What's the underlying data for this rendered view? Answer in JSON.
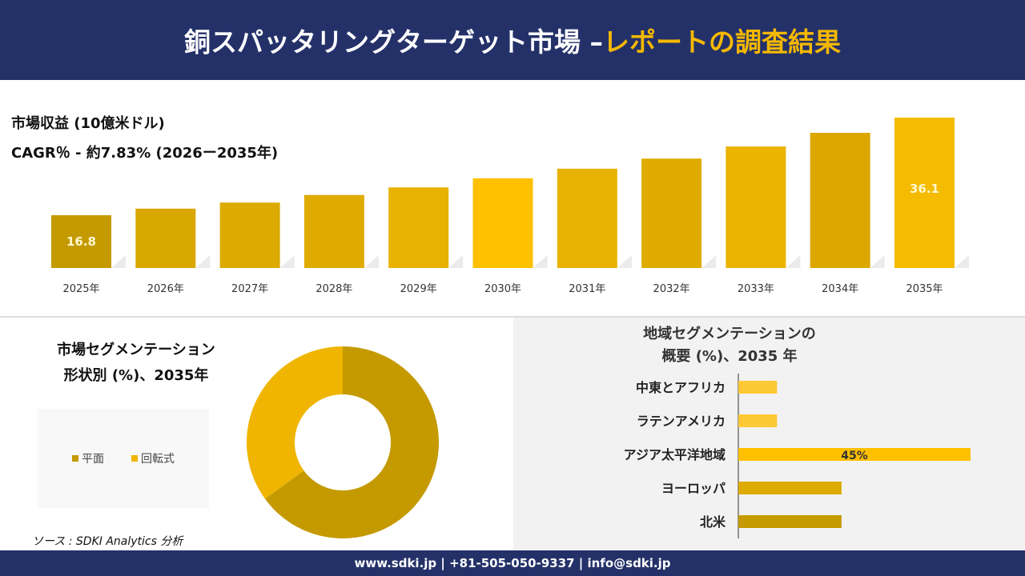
{
  "header": {
    "title_main": "銅スパッタリングターゲット市場 –",
    "title_accent": "レポートの調査結果"
  },
  "revenue": {
    "title": "市場収益 (10億米ドル)",
    "cagr": "CAGR％ - 約7.83% (2026ー2035年)"
  },
  "chart_data": [
    {
      "type": "bar",
      "categories": [
        "2025年",
        "2026年",
        "2027年",
        "2028年",
        "2029年",
        "2030年",
        "2031年",
        "2032年",
        "2033年",
        "2034年",
        "2035年"
      ],
      "values": [
        16.8,
        18.1,
        19.3,
        20.8,
        22.3,
        24.1,
        26.0,
        28.0,
        30.4,
        33.1,
        36.1
      ],
      "data_labels": {
        "2025年": "16.8",
        "2035年": "36.1"
      },
      "colors": [
        "#c49a00",
        "#d9a800",
        "#dcaa00",
        "#e0ab00",
        "#e8b200",
        "#ffc000",
        "#e8b200",
        "#dfab00",
        "#ebb400",
        "#dca800",
        "#f5bb00"
      ]
    },
    {
      "type": "pie",
      "title": "市場セグメンテーション 形状別 (%)、2035年",
      "labels": [
        "平面",
        "回転式"
      ],
      "values": [
        65,
        35
      ],
      "colors": [
        "#c49a00",
        "#efb500"
      ],
      "legend": "left"
    },
    {
      "type": "bar",
      "orientation": "horizontal",
      "title": "地域セグメンテーションの 概要 (%)、2035 年",
      "categories": [
        "中東とアフリカ",
        "ラテンアメリカ",
        "アジア太平洋地域",
        "ヨーロッパ",
        "北米"
      ],
      "values": [
        7.5,
        7.5,
        45,
        20,
        20
      ],
      "data_labels": {
        "アジア太平洋地域": "45%"
      },
      "colors": [
        "#fcc934",
        "#fcc934",
        "#ffc000",
        "#dcaa00",
        "#c49a00"
      ]
    }
  ],
  "segment": {
    "title_line1": "市場セグメンテーション",
    "title_line2": "形状別 (%)、2035年"
  },
  "region": {
    "title_line1": "地域セグメンテーションの",
    "title_line2": "概要 (%)、2035 年"
  },
  "source": "ソース : SDKI Analytics 分析",
  "footer": "www.sdki.jp | +81-505-050-9337 | info@sdki.jp"
}
